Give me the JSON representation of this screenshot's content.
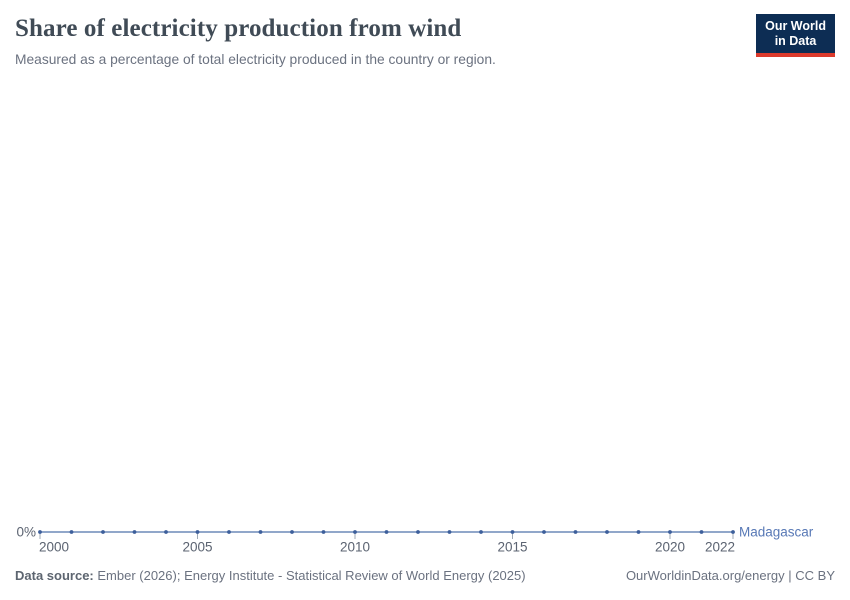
{
  "header": {
    "title": "Share of electricity production from wind",
    "subtitle": "Measured as a percentage of total electricity produced in the country or region.",
    "logo": {
      "line1": "Our World",
      "line2": "in Data"
    }
  },
  "chart_data": {
    "type": "line",
    "title": "Share of electricity production from wind",
    "x": [
      2000,
      2001,
      2002,
      2003,
      2004,
      2005,
      2006,
      2007,
      2008,
      2009,
      2010,
      2011,
      2012,
      2013,
      2014,
      2015,
      2016,
      2017,
      2018,
      2019,
      2020,
      2021,
      2022
    ],
    "series": [
      {
        "name": "Madagascar",
        "values": [
          0,
          0,
          0,
          0,
          0,
          0,
          0,
          0,
          0,
          0,
          0,
          0,
          0,
          0,
          0,
          0,
          0,
          0,
          0,
          0,
          0,
          0,
          0
        ]
      }
    ],
    "x_tick_years": [
      2000,
      2005,
      2010,
      2015,
      2020,
      2022
    ],
    "x_tick_labels": [
      "2000",
      "2005",
      "2010",
      "2015",
      "2020",
      "2022"
    ],
    "y_tick_label": "0%",
    "xlim": [
      2000,
      2022
    ],
    "ylim": [
      0,
      0
    ],
    "grid": false,
    "legend": "end-of-line-label",
    "unit": "%"
  },
  "footer": {
    "source_label": "Data source:",
    "source_text": " Ember (2026); Energy Institute - Statistical Review of World Energy (2025)",
    "link_text": "OurWorldinData.org/energy | CC BY"
  },
  "colors": {
    "line": "#6d8ab9",
    "marker": "#3d5f9b",
    "entity_label": "#5879b6",
    "axis_text": "#5b6371",
    "tick": "#9fa9b4",
    "logo_bg": "#0d2d54",
    "logo_red": "#dc3a2c"
  }
}
